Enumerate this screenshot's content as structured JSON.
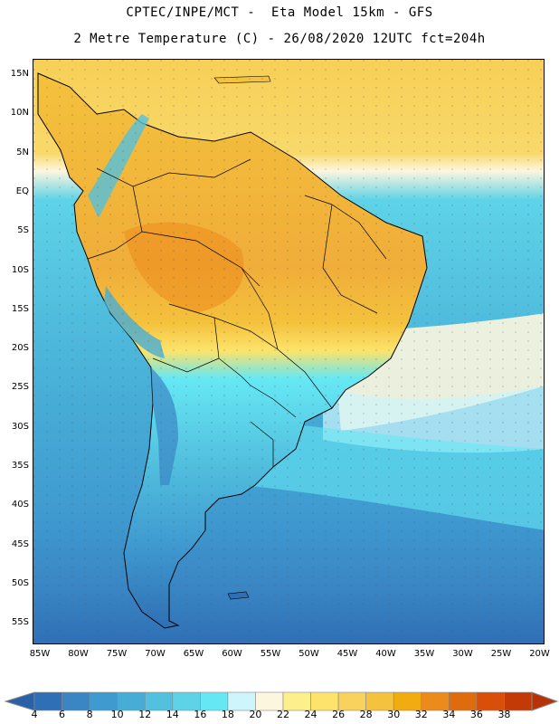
{
  "title_line1": "CPTEC/INPE/MCT -  Eta Model 15km - GFS",
  "title_line2": "2 Metre Temperature (C) - 26/08/2020 12UTC fct=204h",
  "map": {
    "lat_labels": [
      "15N",
      "10N",
      "5N",
      "EQ",
      "5S",
      "10S",
      "15S",
      "20S",
      "25S",
      "30S",
      "35S",
      "40S",
      "45S",
      "50S",
      "55S"
    ],
    "lon_labels": [
      "85W",
      "80W",
      "75W",
      "70W",
      "65W",
      "60W",
      "55W",
      "50W",
      "45W",
      "40W",
      "35W",
      "30W",
      "25W",
      "20W"
    ],
    "regions": [
      "South America"
    ]
  },
  "legend": {
    "labels": [
      "4",
      "6",
      "8",
      "10",
      "12",
      "14",
      "16",
      "18",
      "20",
      "22",
      "24",
      "26",
      "28",
      "30",
      "32",
      "34",
      "36",
      "38"
    ],
    "colors": [
      "#2f6fb5",
      "#3a86c4",
      "#3f9ad0",
      "#47add6",
      "#52c0df",
      "#5ed3e8",
      "#66e8f4",
      "#cdf5fb",
      "#fdf6df",
      "#fdf08a",
      "#fde36b",
      "#f8d25c",
      "#f4c23c",
      "#f2ac10",
      "#ec8a1c",
      "#e06b0c",
      "#d94e08",
      "#c43a07"
    ],
    "end_colors": [
      "#2b60a8",
      "#b73306"
    ]
  }
}
